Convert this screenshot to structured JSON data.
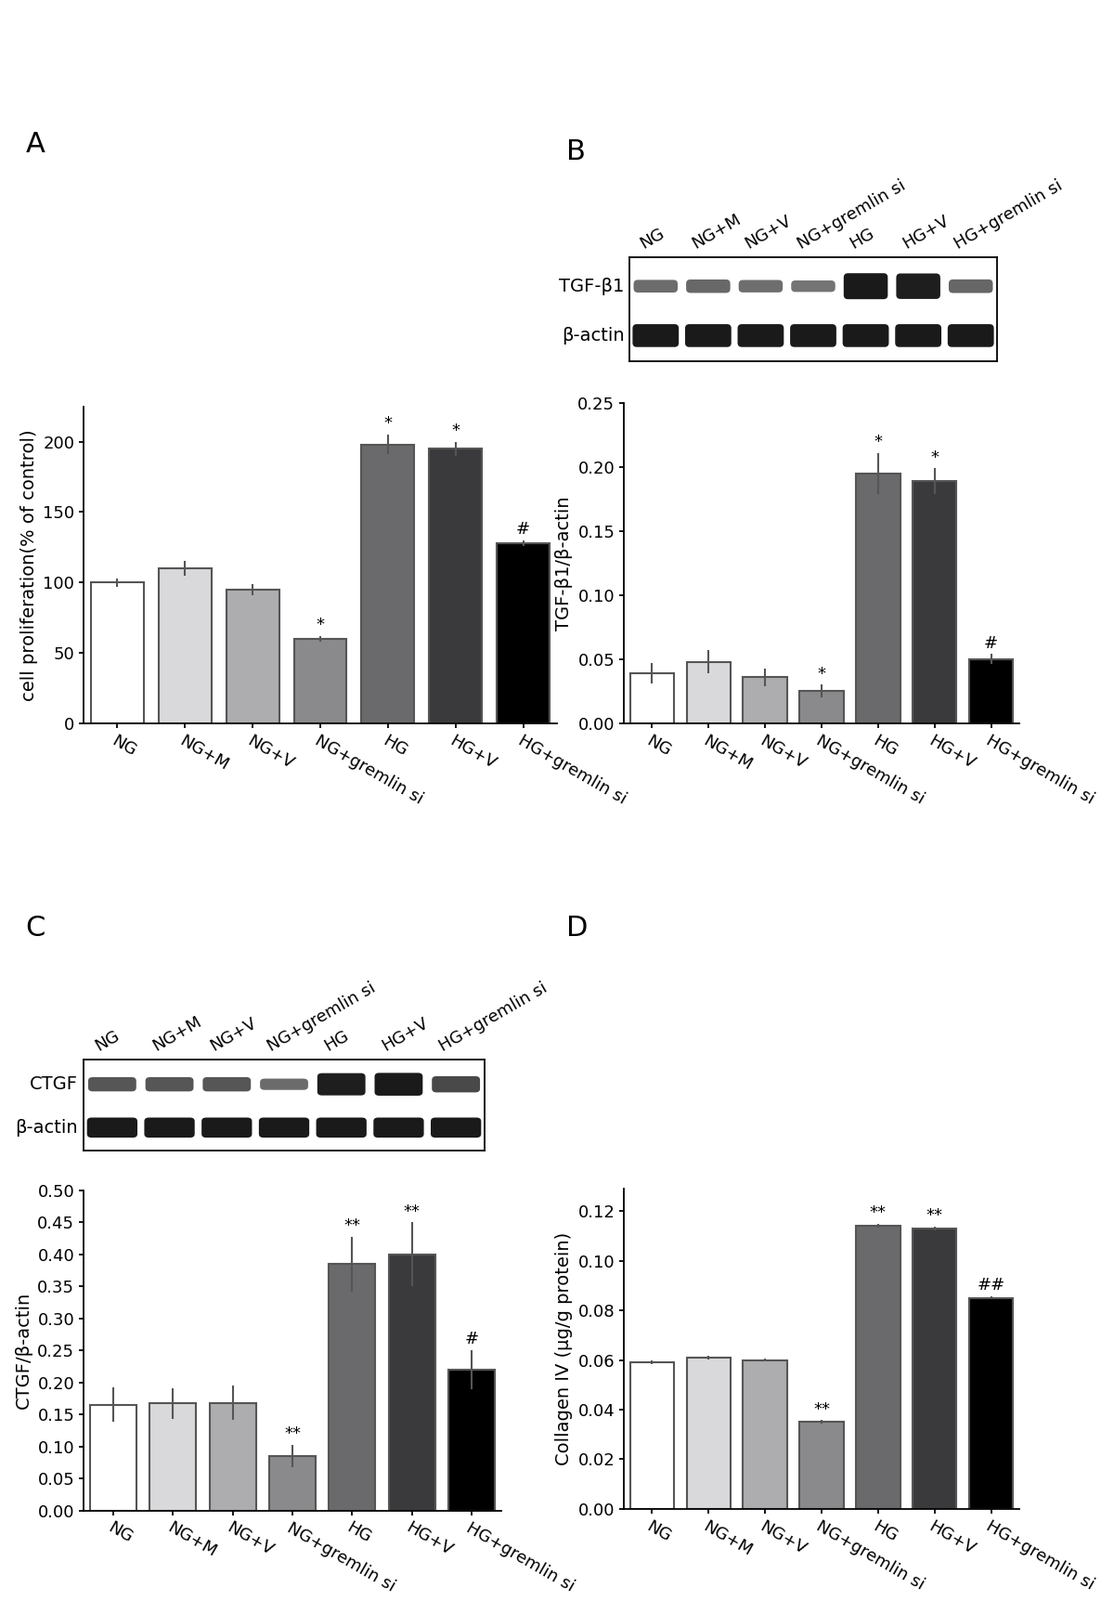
{
  "chart_data": [
    {
      "type": "bar",
      "title": "A",
      "y_label": "cell proliferation(% of control)",
      "categories": [
        "NG",
        "NG+M",
        "NG+V",
        "NG+gremlin si",
        "HG",
        "HG+V",
        "HG+gremlin si"
      ],
      "values": [
        100,
        110,
        95,
        60,
        198,
        195,
        128
      ],
      "errors": [
        3,
        5,
        4,
        2,
        7,
        5,
        2
      ],
      "significance": [
        null,
        null,
        null,
        "*",
        "*",
        "*",
        "#"
      ],
      "colors": [
        "#ffffff",
        "#d9d9db",
        "#adadb0",
        "#8a8a8d",
        "#6a6a6c",
        "#3a3a3c",
        "#000000"
      ],
      "ylim": [
        0,
        225
      ],
      "yticks": [
        0,
        50,
        100,
        150,
        200
      ]
    },
    {
      "type": "bar",
      "title": "B",
      "y_label": "TGF-β1/β-actin",
      "blot_rows": [
        "TGF-β1",
        "β-actin"
      ],
      "categories": [
        "NG",
        "NG+M",
        "NG+V",
        "NG+gremlin si",
        "HG",
        "HG+V",
        "HG+gremlin si"
      ],
      "values": [
        0.039,
        0.048,
        0.036,
        0.025,
        0.195,
        0.189,
        0.05
      ],
      "errors": [
        0.008,
        0.009,
        0.007,
        0.005,
        0.016,
        0.01,
        0.004
      ],
      "significance": [
        null,
        null,
        null,
        "*",
        "*",
        "*",
        "#"
      ],
      "colors": [
        "#ffffff",
        "#d9d9db",
        "#adadb0",
        "#8a8a8d",
        "#6a6a6c",
        "#3a3a3c",
        "#000000"
      ],
      "ylim": [
        0,
        0.25
      ],
      "yticks": [
        {
          "value": 0,
          "label": "0.00"
        },
        {
          "value": 0.05,
          "label": "0.05"
        },
        {
          "value": 0.1,
          "label": "0.10"
        },
        {
          "value": 0.15,
          "label": "0.15"
        },
        {
          "value": 0.2,
          "label": "0.20"
        },
        {
          "value": 0.25,
          "label": "0.25"
        }
      ]
    },
    {
      "type": "bar",
      "title": "C",
      "y_label": "CTGF/β-actin",
      "blot_rows": [
        "CTGF",
        "β-actin"
      ],
      "categories": [
        "NG",
        "NG+M",
        "NG+V",
        "NG+gremlin si",
        "HG",
        "HG+V",
        "HG+gremlin si"
      ],
      "values": [
        0.165,
        0.167,
        0.168,
        0.085,
        0.385,
        0.4,
        0.22
      ],
      "errors": [
        0.027,
        0.024,
        0.027,
        0.018,
        0.043,
        0.05,
        0.03
      ],
      "significance": [
        null,
        null,
        null,
        "**",
        "**",
        "**",
        "#"
      ],
      "colors": [
        "#ffffff",
        "#d9d9db",
        "#adadb0",
        "#8a8a8d",
        "#6a6a6c",
        "#3a3a3c",
        "#000000"
      ],
      "ylim": [
        0,
        0.5
      ],
      "yticks": [
        {
          "value": 0,
          "label": "0.00"
        },
        {
          "value": 0.05,
          "label": "0.05"
        },
        {
          "value": 0.1,
          "label": "0.10"
        },
        {
          "value": 0.15,
          "label": "0.15"
        },
        {
          "value": 0.2,
          "label": "0.20"
        },
        {
          "value": 0.25,
          "label": "0.25"
        },
        {
          "value": 0.3,
          "label": "0.30"
        },
        {
          "value": 0.35,
          "label": "0.35"
        },
        {
          "value": 0.4,
          "label": "0.40"
        },
        {
          "value": 0.45,
          "label": "0.45"
        },
        {
          "value": 0.5,
          "label": "0.50"
        }
      ]
    },
    {
      "type": "bar",
      "title": "D",
      "y_label": "Collagen IV (µg/g protein)",
      "categories": [
        "NG",
        "NG+M",
        "NG+V",
        "NG+gremlin si",
        "HG",
        "HG+V",
        "HG+gremlin si"
      ],
      "values": [
        0.059,
        0.061,
        0.06,
        0.035,
        0.114,
        0.113,
        0.085
      ],
      "errors": [
        0.0007,
        0.0007,
        0.0007,
        0.0007,
        0.0008,
        0.0008,
        0.0006
      ],
      "significance": [
        null,
        null,
        null,
        "**",
        "**",
        "**",
        "##"
      ],
      "colors": [
        "#ffffff",
        "#d9d9db",
        "#adadb0",
        "#8a8a8d",
        "#6a6a6c",
        "#3a3a3c",
        "#000000"
      ],
      "ylim": [
        0,
        0.129
      ],
      "yticks": [
        {
          "value": 0,
          "label": "0.00"
        },
        {
          "value": 0.02,
          "label": "0.02"
        },
        {
          "value": 0.04,
          "label": "0.04"
        },
        {
          "value": 0.06,
          "label": "0.06"
        },
        {
          "value": 0.08,
          "label": "0.08"
        },
        {
          "value": 0.1,
          "label": "0.10"
        },
        {
          "value": 0.12,
          "label": "0.12"
        }
      ]
    }
  ]
}
